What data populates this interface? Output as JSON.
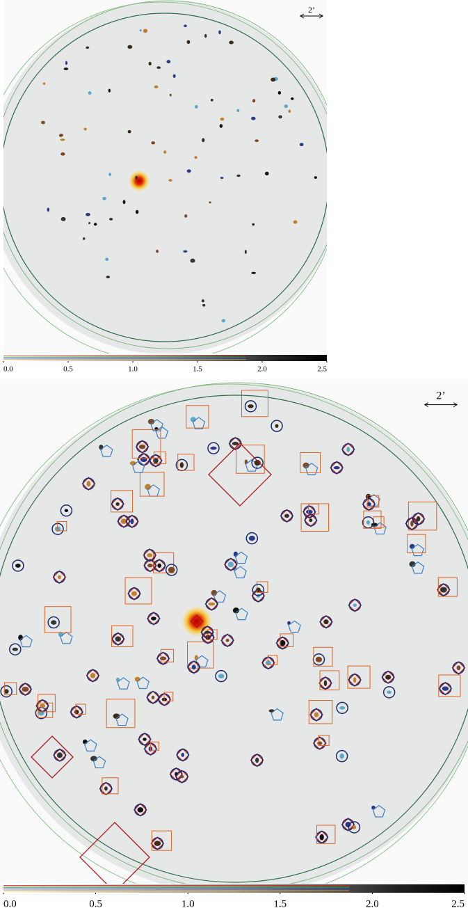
{
  "panels": [
    {
      "scale_label": "2’",
      "colorbar": {
        "lim": [
          0,
          2.5
        ],
        "ticks": [
          {
            "value": 0,
            "label": "0.0"
          },
          {
            "value": 0.5,
            "label": "0.5"
          },
          {
            "value": 1,
            "label": "1.0"
          },
          {
            "value": 1.5,
            "label": "1.5"
          },
          {
            "value": 2,
            "label": "2.0"
          },
          {
            "value": 2.5,
            "label": "2.5"
          }
        ]
      }
    },
    {
      "scale_label": "2’",
      "colorbar": {
        "lim": [
          0,
          2.5
        ],
        "ticks": [
          {
            "value": 0,
            "label": "0.0"
          },
          {
            "value": 0.5,
            "label": "0.5"
          },
          {
            "value": 1,
            "label": "1.0"
          },
          {
            "value": 1.5,
            "label": "1.5"
          },
          {
            "value": 2,
            "label": "2.0"
          },
          {
            "value": 2.5,
            "label": "2.5"
          }
        ]
      }
    }
  ]
}
